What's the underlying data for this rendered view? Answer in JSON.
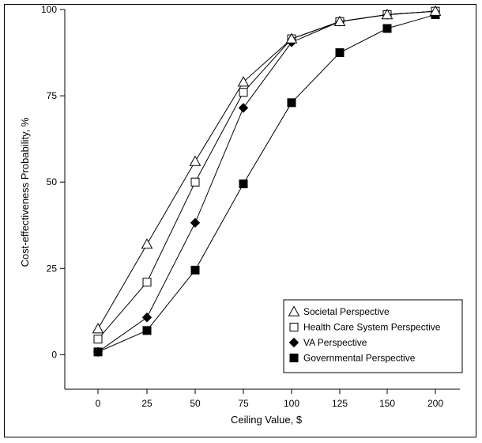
{
  "chart_data": {
    "type": "line",
    "xlabel": "Ceiling Value, $",
    "ylabel": "Cost-effectiveness Probability, %",
    "categories": [
      "0",
      "25",
      "50",
      "75",
      "100",
      "125",
      "150",
      "200"
    ],
    "yticks": [
      0,
      25,
      50,
      75,
      100
    ],
    "ylim": [
      -10,
      100
    ],
    "grid": false,
    "legend_position": "bottom-right",
    "series": [
      {
        "name": "Societal Perspective",
        "marker": "open-triangle",
        "values": [
          7.5,
          32,
          56,
          79,
          91.5,
          96.5,
          98.5,
          99.5
        ]
      },
      {
        "name": "Health Care System Perspective",
        "marker": "open-square",
        "values": [
          4.5,
          21,
          50,
          76,
          91.5,
          96.5,
          98.5,
          99.5
        ]
      },
      {
        "name": "VA Perspective",
        "marker": "filled-diamond",
        "values": [
          0.8,
          10.8,
          38.2,
          71.5,
          90.5,
          96.5,
          98.5,
          99.5
        ]
      },
      {
        "name": "Governmental Perspective",
        "marker": "filled-square",
        "values": [
          0.8,
          7,
          24.5,
          49.5,
          73,
          87.5,
          94.5,
          98.5
        ]
      }
    ],
    "colors": {
      "line": "#000000",
      "marker_fill": "#000000",
      "background": "#ffffff"
    }
  }
}
